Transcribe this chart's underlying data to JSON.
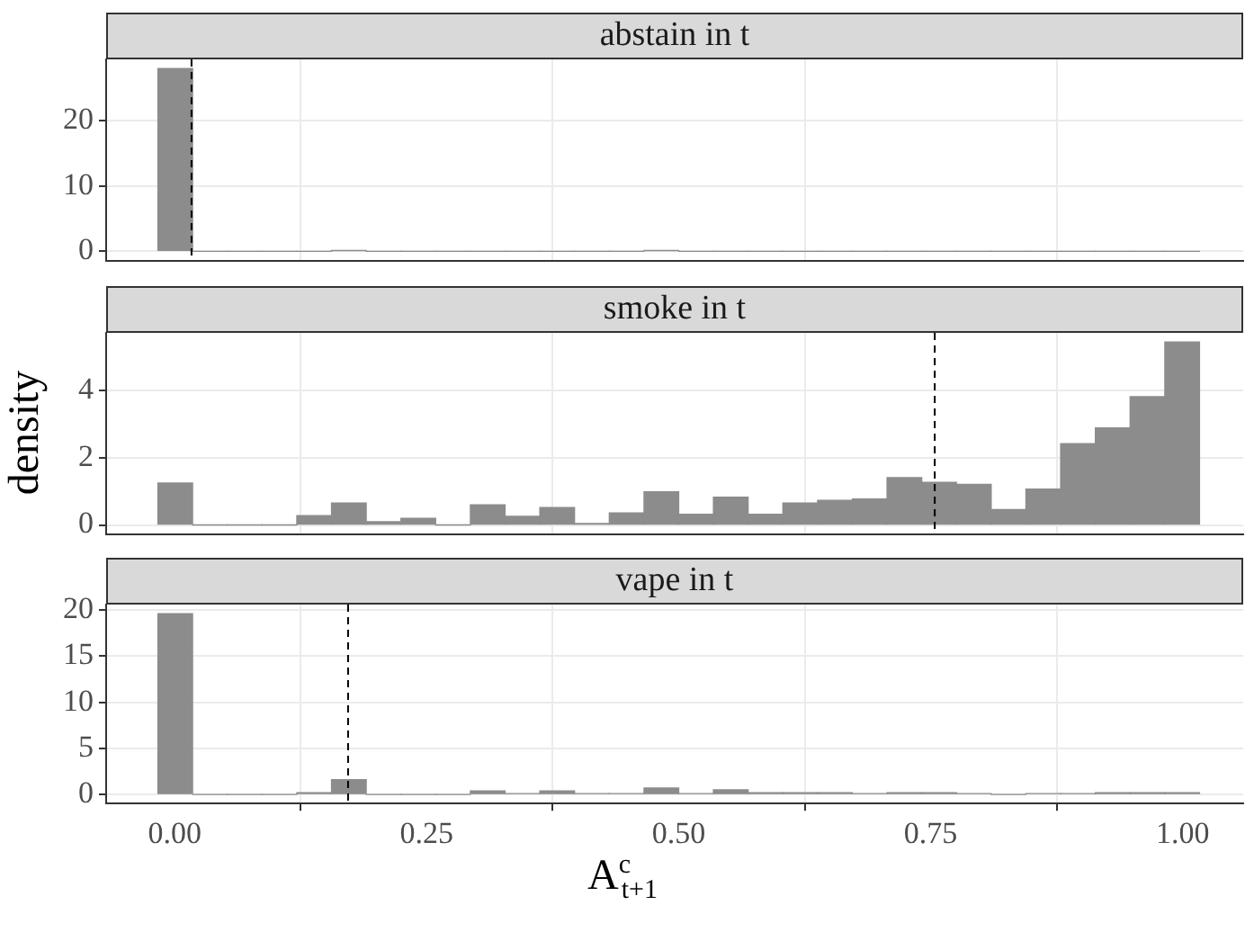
{
  "chart_data": [
    {
      "type": "histogram",
      "title": "abstain in t",
      "color": "#8c8c8c",
      "bins": [
        -0.0167,
        0.0178,
        0.0522,
        0.0867,
        0.1211,
        0.1556,
        0.19,
        0.2244,
        0.2589,
        0.2933,
        0.3278,
        0.3622,
        0.3967,
        0.4311,
        0.4656,
        0.5,
        0.5344,
        0.5689,
        0.6033,
        0.6378,
        0.6722,
        0.7067,
        0.7411,
        0.7756,
        0.81,
        0.8444,
        0.8789,
        0.9133,
        0.9478,
        0.9822,
        1.0167
      ],
      "values": [
        28,
        0,
        0,
        0,
        0,
        0.1,
        0,
        0,
        0,
        0,
        0,
        0,
        0,
        0,
        0.1,
        0,
        0,
        0,
        0,
        0,
        0,
        0,
        0,
        0,
        0,
        0,
        0,
        0,
        0,
        0
      ],
      "xlim": [
        -0.068,
        1.06
      ],
      "ylim": [
        -1.4,
        29.4
      ],
      "yticks": [
        0,
        10,
        20
      ],
      "xticks": [
        0,
        0.25,
        0.5,
        0.75,
        1
      ],
      "ref_lines": [
        {
          "axis": "x",
          "value": 0.0167,
          "line_style": "dashed"
        }
      ],
      "grid": true,
      "legend": false,
      "tick_labels": "y"
    },
    {
      "type": "histogram",
      "title": "smoke in t",
      "ylabel": "density",
      "color": "#8c8c8c",
      "bins": [
        -0.0167,
        0.0178,
        0.0522,
        0.0867,
        0.1211,
        0.1556,
        0.19,
        0.2244,
        0.2589,
        0.2933,
        0.3278,
        0.3622,
        0.3967,
        0.4311,
        0.4656,
        0.5,
        0.5344,
        0.5689,
        0.6033,
        0.6378,
        0.6722,
        0.7067,
        0.7411,
        0.7756,
        0.81,
        0.8444,
        0.8789,
        0.9133,
        0.9478,
        0.9822,
        1.0167
      ],
      "values": [
        1.25,
        0,
        0,
        0,
        0.28,
        0.65,
        0.1,
        0.2,
        0,
        0.6,
        0.26,
        0.52,
        0.04,
        0.36,
        0.99,
        0.32,
        0.83,
        0.32,
        0.65,
        0.73,
        0.77,
        1.41,
        1.27,
        1.21,
        0.46,
        1.07,
        2.42,
        2.89,
        3.82,
        5.45
      ],
      "xlim": [
        -0.068,
        1.06
      ],
      "ylim": [
        -0.27,
        5.72
      ],
      "yticks": [
        0,
        2,
        4
      ],
      "xticks": [
        0,
        0.25,
        0.5,
        0.75,
        1
      ],
      "ref_lines": [
        {
          "axis": "x",
          "value": 0.754,
          "line_style": "dashed"
        }
      ],
      "grid": true,
      "legend": false,
      "tick_labels": "y"
    },
    {
      "type": "histogram",
      "title": "vape in t",
      "xlabel": "A$^{c}$$_{t+1}$",
      "color": "#8c8c8c",
      "bins": [
        -0.0167,
        0.0178,
        0.0522,
        0.0867,
        0.1211,
        0.1556,
        0.19,
        0.2244,
        0.2589,
        0.2933,
        0.3278,
        0.3622,
        0.3967,
        0.4311,
        0.4656,
        0.5,
        0.5344,
        0.5689,
        0.6033,
        0.6378,
        0.6722,
        0.7067,
        0.7411,
        0.7756,
        0.81,
        0.8444,
        0.8789,
        0.9133,
        0.9478,
        0.9822,
        1.0167
      ],
      "values": [
        19.6,
        0,
        0,
        0,
        0.2,
        1.6,
        0,
        0,
        0,
        0.4,
        0.1,
        0.4,
        0.1,
        0.1,
        0.7,
        0.1,
        0.5,
        0.2,
        0.2,
        0.2,
        0.1,
        0.2,
        0.2,
        0.1,
        0,
        0.1,
        0.1,
        0.2,
        0.2,
        0.2
      ],
      "xlim": [
        -0.068,
        1.06
      ],
      "ylim": [
        -0.98,
        20.6
      ],
      "yticks": [
        0,
        5,
        10,
        15,
        20
      ],
      "xticks": [
        {
          "value": 0,
          "label": "0.00"
        },
        {
          "value": 0.25,
          "label": "0.25"
        },
        {
          "value": 0.5,
          "label": "0.50"
        },
        {
          "value": 0.75,
          "label": "0.75"
        },
        {
          "value": 1,
          "label": "1.00"
        }
      ],
      "ref_lines": [
        {
          "axis": "x",
          "value": 0.172,
          "line_style": "dashed"
        }
      ],
      "grid": true,
      "legend": false
    }
  ]
}
